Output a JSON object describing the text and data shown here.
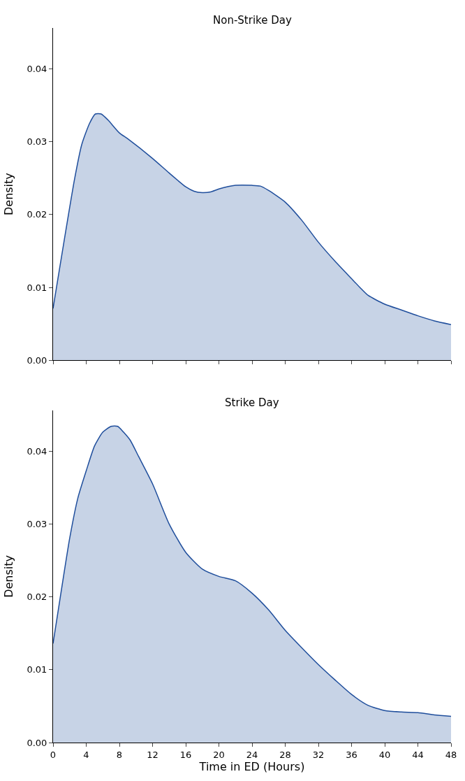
{
  "chart_data": [
    {
      "type": "area",
      "title": "Non-Strike Day",
      "ylabel": "Density",
      "x": [
        0,
        2.6,
        3.46,
        4.4,
        5.1,
        5.8,
        6.6,
        8,
        9,
        12,
        14,
        16,
        17,
        18,
        19,
        20,
        22,
        24,
        25,
        26,
        28,
        30,
        32,
        34,
        36,
        37,
        38,
        40,
        42,
        44,
        46,
        48
      ],
      "series": [
        {
          "color": "#1f4e9c",
          "values": [
            0.0071,
            0.0249,
            0.0296,
            0.0325,
            0.0338,
            0.0338,
            0.033,
            0.0312,
            0.0304,
            0.0277,
            0.0257,
            0.0238,
            0.0232,
            0.023,
            0.0231,
            0.0235,
            0.024,
            0.024,
            0.0239,
            0.0233,
            0.0217,
            0.0192,
            0.0162,
            0.0136,
            0.0112,
            0.01,
            0.0089,
            0.0077,
            0.0069,
            0.0061,
            0.0054,
            0.0049
          ]
        }
      ],
      "xlim": [
        0,
        48
      ],
      "xticks": [
        {
          "value": 0,
          "label": null
        },
        {
          "value": 4,
          "label": null
        },
        {
          "value": 8,
          "label": null
        },
        {
          "value": 12,
          "label": null
        },
        {
          "value": 16,
          "label": null
        },
        {
          "value": 20,
          "label": null
        },
        {
          "value": 24,
          "label": null
        },
        {
          "value": 28,
          "label": null
        },
        {
          "value": 32,
          "label": null
        },
        {
          "value": 36,
          "label": null
        },
        {
          "value": 40,
          "label": null
        },
        {
          "value": 44,
          "label": null
        },
        {
          "value": 48,
          "label": null
        }
      ],
      "ylim": [
        0,
        0.0456
      ],
      "yticks": [
        {
          "value": 0,
          "label": "0.00"
        },
        {
          "value": 0.01,
          "label": "0.01"
        },
        {
          "value": 0.02,
          "label": "0.02"
        },
        {
          "value": 0.03,
          "label": "0.03"
        },
        {
          "value": 0.04,
          "label": "0.04"
        }
      ],
      "tick_labels": "y"
    },
    {
      "type": "area",
      "title": "Strike Day",
      "xlabel": "Time in ED (Hours)",
      "ylabel": "Density",
      "x": [
        0,
        1,
        2,
        3,
        4,
        5,
        6,
        7,
        7.8,
        8.5,
        9.3,
        10.3,
        12,
        14,
        16,
        18,
        20,
        22,
        24,
        26,
        28,
        30,
        32,
        34,
        36,
        38,
        40,
        42,
        44,
        46,
        48
      ],
      "series": [
        {
          "color": "#1f4e9c",
          "values": [
            0.0136,
            0.0209,
            0.028,
            0.0336,
            0.0373,
            0.0407,
            0.0426,
            0.0434,
            0.0434,
            0.0426,
            0.0415,
            0.0393,
            0.0355,
            0.03,
            0.0261,
            0.0238,
            0.0228,
            0.0222,
            0.0205,
            0.0182,
            0.0154,
            0.013,
            0.0107,
            0.0086,
            0.0066,
            0.0051,
            0.0044,
            0.0042,
            0.0041,
            0.0038,
            0.0036
          ]
        }
      ],
      "xlim": [
        0,
        48
      ],
      "xticks": [
        0,
        4,
        8,
        12,
        16,
        20,
        24,
        28,
        32,
        36,
        40,
        44,
        48
      ],
      "ylim": [
        0,
        0.0456
      ],
      "yticks": [
        {
          "value": 0,
          "label": "0.00"
        },
        {
          "value": 0.01,
          "label": "0.01"
        },
        {
          "value": 0.02,
          "label": "0.02"
        },
        {
          "value": 0.03,
          "label": "0.03"
        },
        {
          "value": 0.04,
          "label": "0.04"
        }
      ]
    }
  ]
}
